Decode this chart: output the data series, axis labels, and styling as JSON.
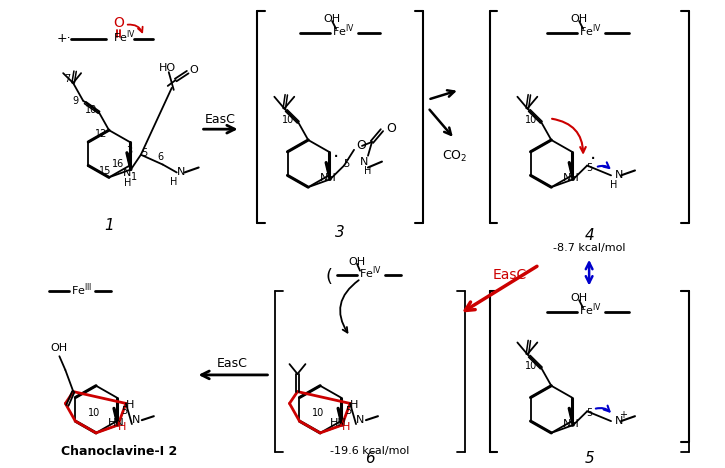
{
  "bg": "#ffffff",
  "compounds": {
    "1_label": "1",
    "3_label": "3",
    "4_label": "4",
    "4_energy": "-8.7 kcal/mol",
    "5_label": "5",
    "6_label": "6",
    "6_energy": "-19.6 kcal/mol",
    "chanoclavine_label": "Chanoclavine-I 2"
  },
  "colors": {
    "red": "#cc0000",
    "blue": "#0000cc",
    "black": "#000000"
  }
}
